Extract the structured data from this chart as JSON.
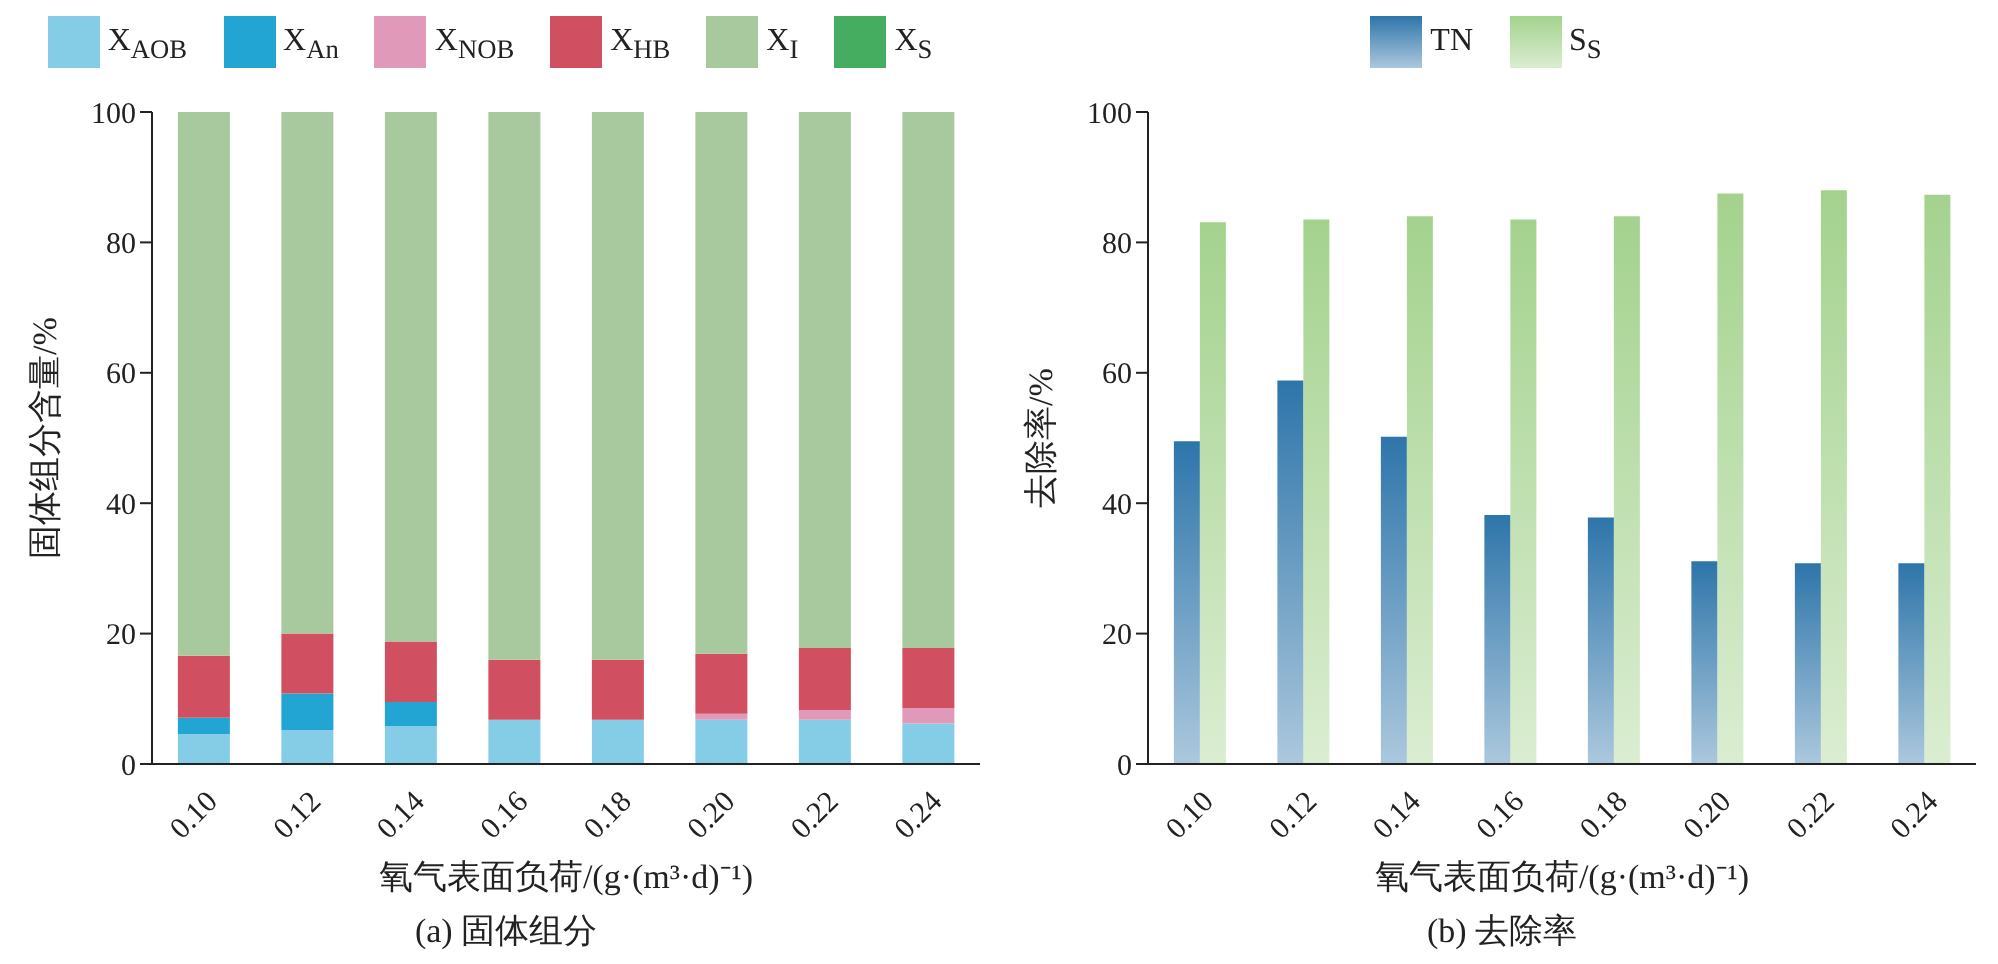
{
  "chart_data": [
    {
      "type": "bar",
      "title": "(a) 固体组分",
      "xlabel": "氧气表面负荷/(g·(m³·d)⁻¹)",
      "ylabel": "固体组分含量/%",
      "categories": [
        "0.10",
        "0.12",
        "0.14",
        "0.16",
        "0.18",
        "0.20",
        "0.22",
        "0.24"
      ],
      "stacked": true,
      "ylim": [
        0,
        100
      ],
      "yticks": [
        0,
        20,
        40,
        60,
        80,
        100
      ],
      "legend": "top",
      "series": [
        {
          "name": "X$_{AOB}$",
          "color": "#85cde6",
          "values": [
            4.6,
            5.2,
            5.8,
            6.8,
            6.8,
            6.8,
            6.8,
            6.2
          ]
        },
        {
          "name": "X$_{An}$",
          "color": "#22a5d2",
          "values": [
            2.5,
            5.6,
            3.7,
            null,
            null,
            null,
            null,
            null
          ]
        },
        {
          "name": "X$_{NOB}$",
          "color": "#e099b8",
          "values": [
            null,
            null,
            null,
            null,
            null,
            0.9,
            1.5,
            2.4
          ]
        },
        {
          "name": "X$_{HB}$",
          "color": "#d04f60",
          "values": [
            9.5,
            9.2,
            9.3,
            9.2,
            9.2,
            9.2,
            9.5,
            9.2
          ]
        },
        {
          "name": "X$_{I}$",
          "color": "#a8c99e",
          "values": [
            83.4,
            80,
            81.2,
            84,
            84,
            83.1,
            82.2,
            82.2
          ]
        },
        {
          "name": "X$_{S}$",
          "color": "#44ad5f",
          "values": [
            null,
            null,
            null,
            null,
            null,
            null,
            null,
            null
          ]
        }
      ]
    },
    {
      "type": "bar",
      "title": "(b) 去除率",
      "xlabel": "氧气表面负荷/(g·(m³·d)⁻¹)",
      "ylabel": "去除率/%",
      "categories": [
        "0.10",
        "0.12",
        "0.14",
        "0.16",
        "0.18",
        "0.20",
        "0.22",
        "0.24"
      ],
      "ylim": [
        0,
        100
      ],
      "yticks": [
        0,
        20,
        40,
        60,
        80,
        100
      ],
      "legend": "top",
      "series": [
        {
          "name": "TN",
          "color": "#2e75aa",
          "values": [
            49.5,
            58.8,
            50.2,
            38.2,
            37.8,
            31.1,
            30.8,
            30.8
          ]
        },
        {
          "name": "S$_{S}$",
          "color": "#a4d28e",
          "values": [
            83.1,
            83.5,
            84,
            83.5,
            84,
            87.5,
            88,
            87.3
          ]
        }
      ]
    }
  ]
}
